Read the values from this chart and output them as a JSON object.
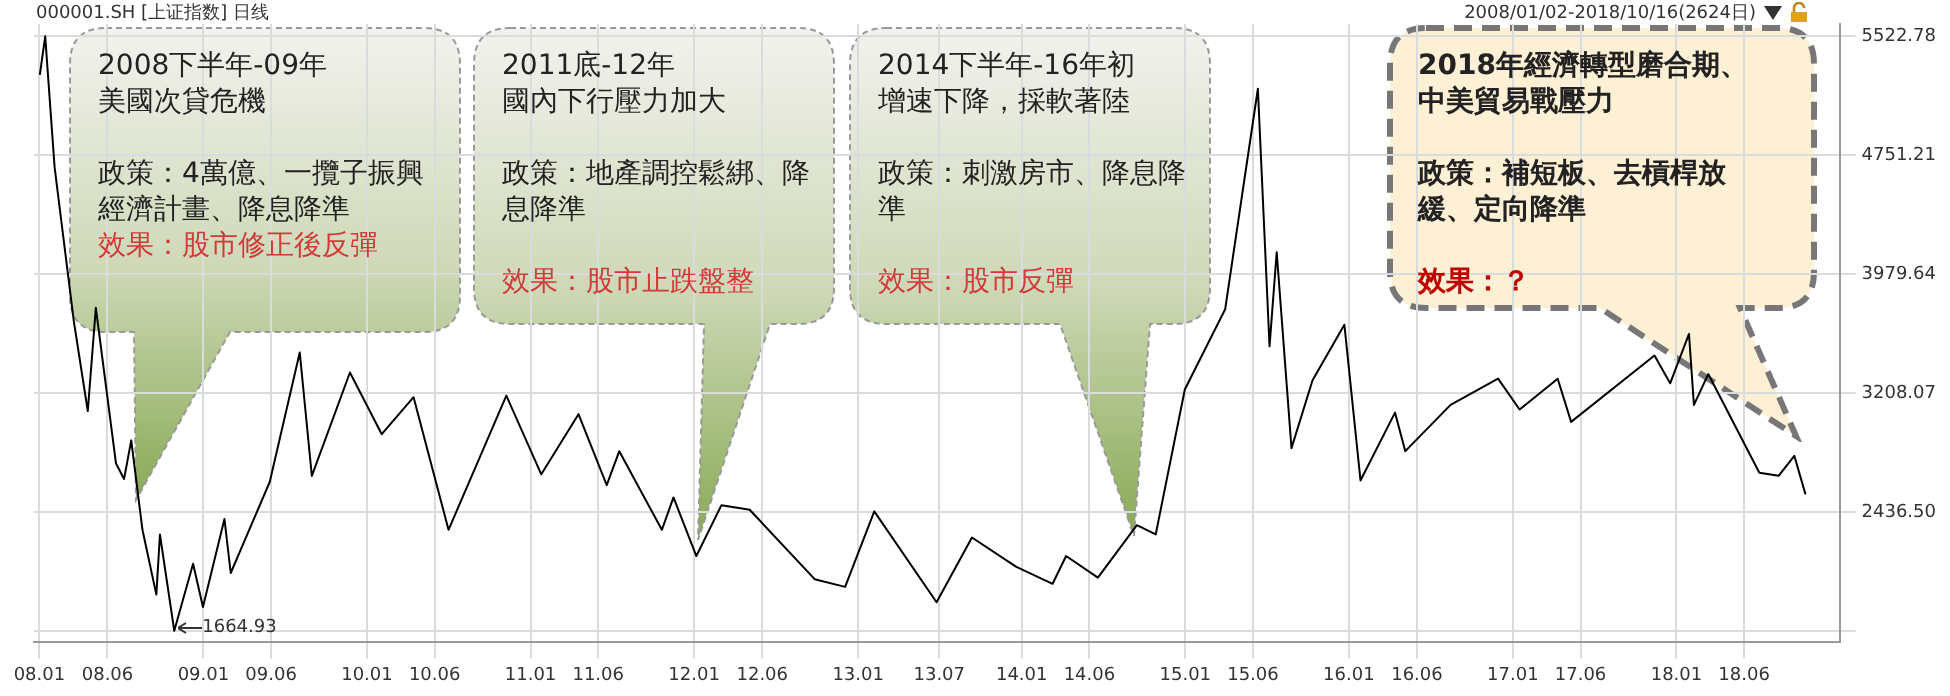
{
  "chart_data": {
    "type": "line",
    "title": "000001.SH [上证指数] 日线",
    "subtitle": "2008/01/02-2018/10/16(2624日)",
    "x": [
      "2008-01-02",
      "2008-01-14",
      "2008-02-04",
      "2008-03-18",
      "2008-04-18",
      "2008-05-06",
      "2008-06-20",
      "2008-07-08",
      "2008-07-24",
      "2008-08-18",
      "2008-09-18",
      "2008-09-26",
      "2008-10-28",
      "2008-12-09",
      "2008-12-31",
      "2009-02-17",
      "2009-03-03",
      "2009-05-29",
      "2009-08-04",
      "2009-08-31",
      "2009-11-24",
      "2010-02-03",
      "2010-04-15",
      "2010-07-02",
      "2010-11-08",
      "2011-01-25",
      "2011-04-18",
      "2011-06-20",
      "2011-07-18",
      "2011-10-21",
      "2011-11-16",
      "2012-01-06",
      "2012-03-02",
      "2012-05-04",
      "2012-09-26",
      "2012-12-03",
      "2013-02-06",
      "2013-06-25",
      "2013-09-12",
      "2013-12-20",
      "2014-03-11",
      "2014-04-10",
      "2014-06-20",
      "2014-09-15",
      "2014-10-27",
      "2014-12-31",
      "2015-03-31",
      "2015-06-12",
      "2015-07-08",
      "2015-07-24",
      "2015-08-26",
      "2015-10-12",
      "2015-12-22",
      "2016-01-27",
      "2016-04-13",
      "2016-05-06",
      "2016-08-15",
      "2016-11-29",
      "2017-01-16",
      "2017-04-11",
      "2017-05-11",
      "2017-11-13",
      "2017-12-18",
      "2018-01-29",
      "2018-02-09",
      "2018-03-13",
      "2018-07-05",
      "2018-08-17",
      "2018-09-21",
      "2018-10-16"
    ],
    "series": [
      {
        "color": "#000000",
        "values": [
          5270,
          5520,
          4670,
          3670,
          3090,
          3760,
          2750,
          2650,
          2900,
          2320,
          1900,
          2290,
          1664.93,
          2100,
          1820,
          2390,
          2040,
          2630,
          3470,
          2670,
          3340,
          2940,
          3180,
          2320,
          3190,
          2680,
          3070,
          2610,
          2830,
          2320,
          2530,
          2150,
          2480,
          2450,
          2000,
          1950,
          2440,
          1850,
          2270,
          2080,
          1970,
          2150,
          2010,
          2350,
          2290,
          3230,
          3750,
          5180,
          3510,
          4120,
          2850,
          3290,
          3650,
          2640,
          3080,
          2830,
          3130,
          3300,
          3100,
          3300,
          3020,
          3450,
          3270,
          3590,
          3130,
          3330,
          2690,
          2670,
          2800,
          2550
        ]
      }
    ],
    "xlim": [
      "2007-12-20",
      "2018-12-31"
    ],
    "xticks": [
      {
        "value": "2008-01",
        "label": "08.01"
      },
      {
        "value": "2008-06",
        "label": "08.06"
      },
      {
        "value": "2009-01",
        "label": "09.01"
      },
      {
        "value": "2009-06",
        "label": "09.06"
      },
      {
        "value": "2010-01",
        "label": "10.01"
      },
      {
        "value": "2010-06",
        "label": "10.06"
      },
      {
        "value": "2011-01",
        "label": "11.01"
      },
      {
        "value": "2011-06",
        "label": "11.06"
      },
      {
        "value": "2012-01",
        "label": "12.01"
      },
      {
        "value": "2012-06",
        "label": "12.06"
      },
      {
        "value": "2013-01",
        "label": "13.01"
      },
      {
        "value": "2013-07",
        "label": "13.07"
      },
      {
        "value": "2014-01",
        "label": "14.01"
      },
      {
        "value": "2014-06",
        "label": "14.06"
      },
      {
        "value": "2015-01",
        "label": "15.01"
      },
      {
        "value": "2015-06",
        "label": "15.06"
      },
      {
        "value": "2016-01",
        "label": "16.01"
      },
      {
        "value": "2016-06",
        "label": "16.06"
      },
      {
        "value": "2017-01",
        "label": "17.01"
      },
      {
        "value": "2017-06",
        "label": "17.06"
      },
      {
        "value": "2018-01",
        "label": "18.01"
      },
      {
        "value": "2018-06",
        "label": "18.06"
      }
    ],
    "ylim": [
      1590,
      5600
    ],
    "yticks": [
      {
        "value": 1664.93,
        "label": null
      },
      {
        "value": 2436.5,
        "label": "2436.50"
      },
      3208.07,
      3979.64,
      4751.21,
      5522.78
    ],
    "grid": true,
    "annotations": [
      "2008下半年-09年",
      "美國次貸危機",
      "政策：4萬億、一攬子振興經濟計畫、降息降準",
      "效果：股市修正後反彈",
      "2011底-12年",
      "國內下行壓力加大",
      "政策：地產調控鬆綁、降息降準",
      "效果：股市止跌盤整",
      "2014下半年-16年初",
      "增速下降，採軟著陸",
      "政策：刺激房市、降息降準",
      "效果：股市反彈",
      "2018年經濟轉型磨合期、中美貿易戰壓力",
      "政策：補短板、去槓桿放緩、定向降準",
      "效果：？",
      {
        "text": "1664.93",
        "x": "2008-10-28",
        "y": 1664.93
      }
    ]
  }
}
